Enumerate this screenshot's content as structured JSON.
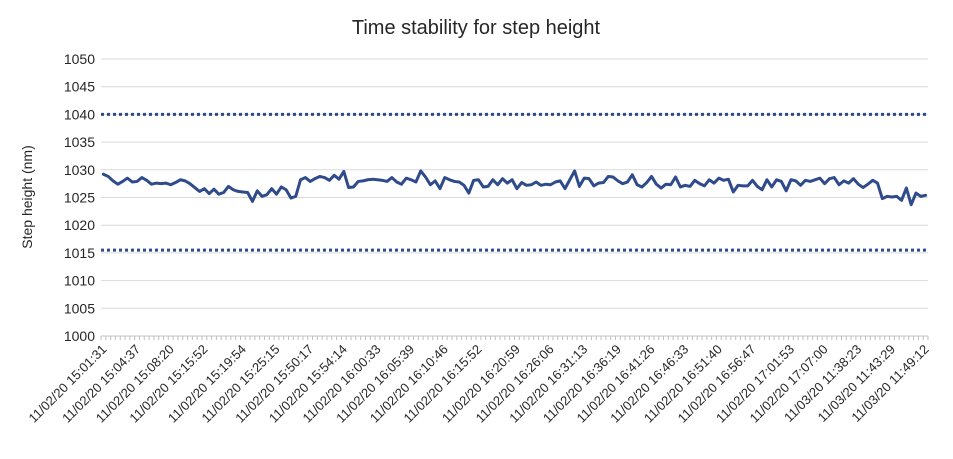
{
  "chart_data": {
    "type": "line",
    "title": "Time stability for step height",
    "xlabel": "",
    "ylabel": "Step height (nm)",
    "ylim": [
      1000,
      1050
    ],
    "yticks": [
      1000,
      1005,
      1010,
      1015,
      1020,
      1025,
      1030,
      1035,
      1040,
      1045,
      1050
    ],
    "grid": true,
    "legend": "none",
    "colors": {
      "series": "#2f4b8c",
      "limits": "#2f4b8c",
      "grid": "#d9d9d9"
    },
    "x_tick_labels": [
      "11/02/20 15:01:31",
      "11/02/20 15:04:37",
      "11/02/20 15:08:20",
      "11/02/20 15:15:52",
      "11/02/20 15:19:54",
      "11/02/20 15:25:15",
      "11/02/20 15:50:17",
      "11/02/20 15:54:14",
      "11/02/20 16:00:33",
      "11/02/20 16:05:39",
      "11/02/20 16:10:46",
      "11/02/20 16:15:52",
      "11/02/20 16:20:59",
      "11/02/20 16:26:06",
      "11/02/20 16:31:13",
      "11/02/20 16:36:19",
      "11/02/20 16:41:26",
      "11/02/20 16:46:33",
      "11/02/20 16:51:40",
      "11/02/20 16:56:47",
      "11/02/20 17:01:53",
      "11/02/20 17:07:00",
      "11/03/20 11:38:23",
      "11/03/20 11:43:29",
      "11/03/20 11:49:12"
    ],
    "limits": [
      {
        "value": 1040,
        "style": "dotted"
      },
      {
        "value": 1015.5,
        "style": "dotted"
      }
    ],
    "series": [
      {
        "values": [
          1029.2,
          1028.8,
          1028.0,
          1027.4,
          1027.9,
          1028.5,
          1027.8,
          1027.9,
          1028.6,
          1028.1,
          1027.4,
          1027.6,
          1027.5,
          1027.6,
          1027.3,
          1027.7,
          1028.2,
          1028.0,
          1027.5,
          1026.8,
          1026.1,
          1026.6,
          1025.7,
          1026.5,
          1025.6,
          1025.9,
          1027.0,
          1026.4,
          1026.1,
          1026.0,
          1025.9,
          1024.3,
          1026.2,
          1025.2,
          1025.5,
          1026.6,
          1025.6,
          1026.9,
          1026.4,
          1024.9,
          1025.2,
          1028.2,
          1028.6,
          1027.9,
          1028.4,
          1028.8,
          1028.6,
          1028.1,
          1029.0,
          1028.3,
          1029.7,
          1026.8,
          1026.9,
          1027.9,
          1028.0,
          1028.2,
          1028.3,
          1028.2,
          1028.1,
          1027.9,
          1028.6,
          1027.8,
          1027.4,
          1028.5,
          1028.2,
          1027.8,
          1029.8,
          1028.7,
          1027.3,
          1028.0,
          1026.6,
          1028.6,
          1028.2,
          1027.9,
          1027.8,
          1027.2,
          1025.8,
          1028.1,
          1028.2,
          1026.9,
          1027.0,
          1028.2,
          1027.3,
          1028.4,
          1027.6,
          1028.2,
          1026.6,
          1027.7,
          1027.2,
          1027.3,
          1027.8,
          1027.2,
          1027.4,
          1027.3,
          1027.8,
          1028.0,
          1026.6,
          1028.2,
          1029.8,
          1027.0,
          1028.5,
          1028.4,
          1027.1,
          1027.6,
          1027.7,
          1028.8,
          1028.7,
          1028.0,
          1027.5,
          1027.8,
          1029.1,
          1027.3,
          1026.9,
          1027.7,
          1028.8,
          1027.4,
          1026.7,
          1027.4,
          1027.3,
          1028.7,
          1026.9,
          1027.2,
          1027.0,
          1028.1,
          1027.5,
          1027.1,
          1028.2,
          1027.6,
          1028.5,
          1028.1,
          1028.3,
          1026.0,
          1027.2,
          1027.1,
          1027.1,
          1028.1,
          1027.0,
          1026.4,
          1028.2,
          1026.9,
          1028.2,
          1027.9,
          1026.2,
          1028.2,
          1028.0,
          1027.2,
          1028.1,
          1027.9,
          1028.2,
          1028.5,
          1027.5,
          1028.4,
          1028.6,
          1027.3,
          1028.0,
          1027.6,
          1028.4,
          1027.4,
          1026.8,
          1027.4,
          1028.1,
          1027.6,
          1024.8,
          1025.2,
          1025.1,
          1025.2,
          1024.5,
          1026.7,
          1023.7,
          1025.8,
          1025.2,
          1025.4
        ]
      }
    ]
  }
}
